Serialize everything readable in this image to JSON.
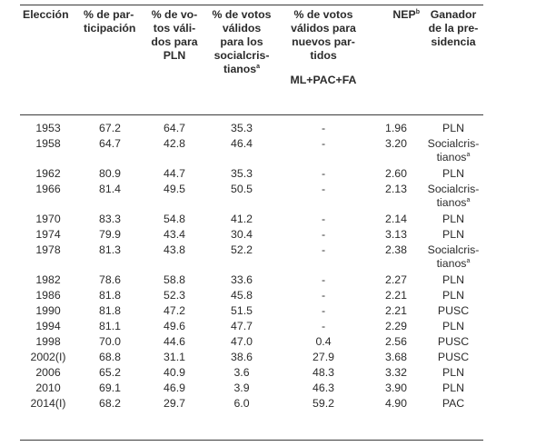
{
  "headers": {
    "eleccion": "Elección",
    "participacion": [
      "% de par-",
      "ticipación"
    ],
    "pln": [
      "% de vo-",
      "tos váli-",
      "dos para",
      "PLN"
    ],
    "social": [
      "% de votos",
      "válidos",
      "para los",
      "socialcris-",
      "tianos"
    ],
    "social_sup": "a",
    "nuevos": [
      "% de votos",
      "válidos para",
      "nuevos par-",
      "tidos"
    ],
    "nuevos_sub": "ML+PAC+FA",
    "nep": "NEP",
    "nep_sup": "b",
    "ganador": [
      "Ganador",
      "de la pre-",
      "sidencia"
    ]
  },
  "rows": [
    {
      "eleccion": "1953",
      "participacion": "67.2",
      "pln": "64.7",
      "social": "35.3",
      "nuevos": "-",
      "nep": "1.96",
      "ganador": [
        "PLN"
      ]
    },
    {
      "eleccion": "1958",
      "participacion": "64.7",
      "pln": "42.8",
      "social": "46.4",
      "nuevos": "-",
      "nep": "3.20",
      "ganador": [
        "Socialcris-",
        "tianos"
      ],
      "ganador_sup": "a"
    },
    {
      "eleccion": "1962",
      "participacion": "80.9",
      "pln": "44.7",
      "social": "35.3",
      "nuevos": "-",
      "nep": "2.60",
      "ganador": [
        "PLN"
      ]
    },
    {
      "eleccion": "1966",
      "participacion": "81.4",
      "pln": "49.5",
      "social": "50.5",
      "nuevos": "-",
      "nep": "2.13",
      "ganador": [
        "Socialcris-",
        "tianos"
      ],
      "ganador_sup": "a"
    },
    {
      "eleccion": "1970",
      "participacion": "83.3",
      "pln": "54.8",
      "social": "41.2",
      "nuevos": "-",
      "nep": "2.14",
      "ganador": [
        "PLN"
      ]
    },
    {
      "eleccion": "1974",
      "participacion": "79.9",
      "pln": "43.4",
      "social": "30.4",
      "nuevos": "-",
      "nep": "3.13",
      "ganador": [
        "PLN"
      ]
    },
    {
      "eleccion": "1978",
      "participacion": "81.3",
      "pln": "43.8",
      "social": "52.2",
      "nuevos": "-",
      "nep": "2.38",
      "ganador": [
        "Socialcris-",
        "tianos"
      ],
      "ganador_sup": "a"
    },
    {
      "eleccion": "1982",
      "participacion": "78.6",
      "pln": "58.8",
      "social": "33.6",
      "nuevos": "-",
      "nep": "2.27",
      "ganador": [
        "PLN"
      ]
    },
    {
      "eleccion": "1986",
      "participacion": "81.8",
      "pln": "52.3",
      "social": "45.8",
      "nuevos": "-",
      "nep": "2.21",
      "ganador": [
        "PLN"
      ]
    },
    {
      "eleccion": "1990",
      "participacion": "81.8",
      "pln": "47.2",
      "social": "51.5",
      "nuevos": "-",
      "nep": "2.21",
      "ganador": [
        "PUSC"
      ]
    },
    {
      "eleccion": "1994",
      "participacion": "81.1",
      "pln": "49.6",
      "social": "47.7",
      "nuevos": "-",
      "nep": "2.29",
      "ganador": [
        "PLN"
      ]
    },
    {
      "eleccion": "1998",
      "participacion": "70.0",
      "pln": "44.6",
      "social": "47.0",
      "nuevos": "0.4",
      "nep": "2.56",
      "ganador": [
        "PUSC"
      ]
    },
    {
      "eleccion": "2002(I)",
      "participacion": "68.8",
      "pln": "31.1",
      "social": "38.6",
      "nuevos": "27.9",
      "nep": "3.68",
      "ganador": [
        "PUSC"
      ]
    },
    {
      "eleccion": "2006",
      "participacion": "65.2",
      "pln": "40.9",
      "social": "3.6",
      "nuevos": "48.3",
      "nep": "3.32",
      "ganador": [
        "PLN"
      ]
    },
    {
      "eleccion": "2010",
      "participacion": "69.1",
      "pln": "46.9",
      "social": "3.9",
      "nuevos": "46.3",
      "nep": "3.90",
      "ganador": [
        "PLN"
      ]
    },
    {
      "eleccion": "2014(I)",
      "participacion": "68.2",
      "pln": "29.7",
      "social": "6.0",
      "nuevos": "59.2",
      "nep": "4.90",
      "ganador": [
        "PAC"
      ]
    }
  ]
}
